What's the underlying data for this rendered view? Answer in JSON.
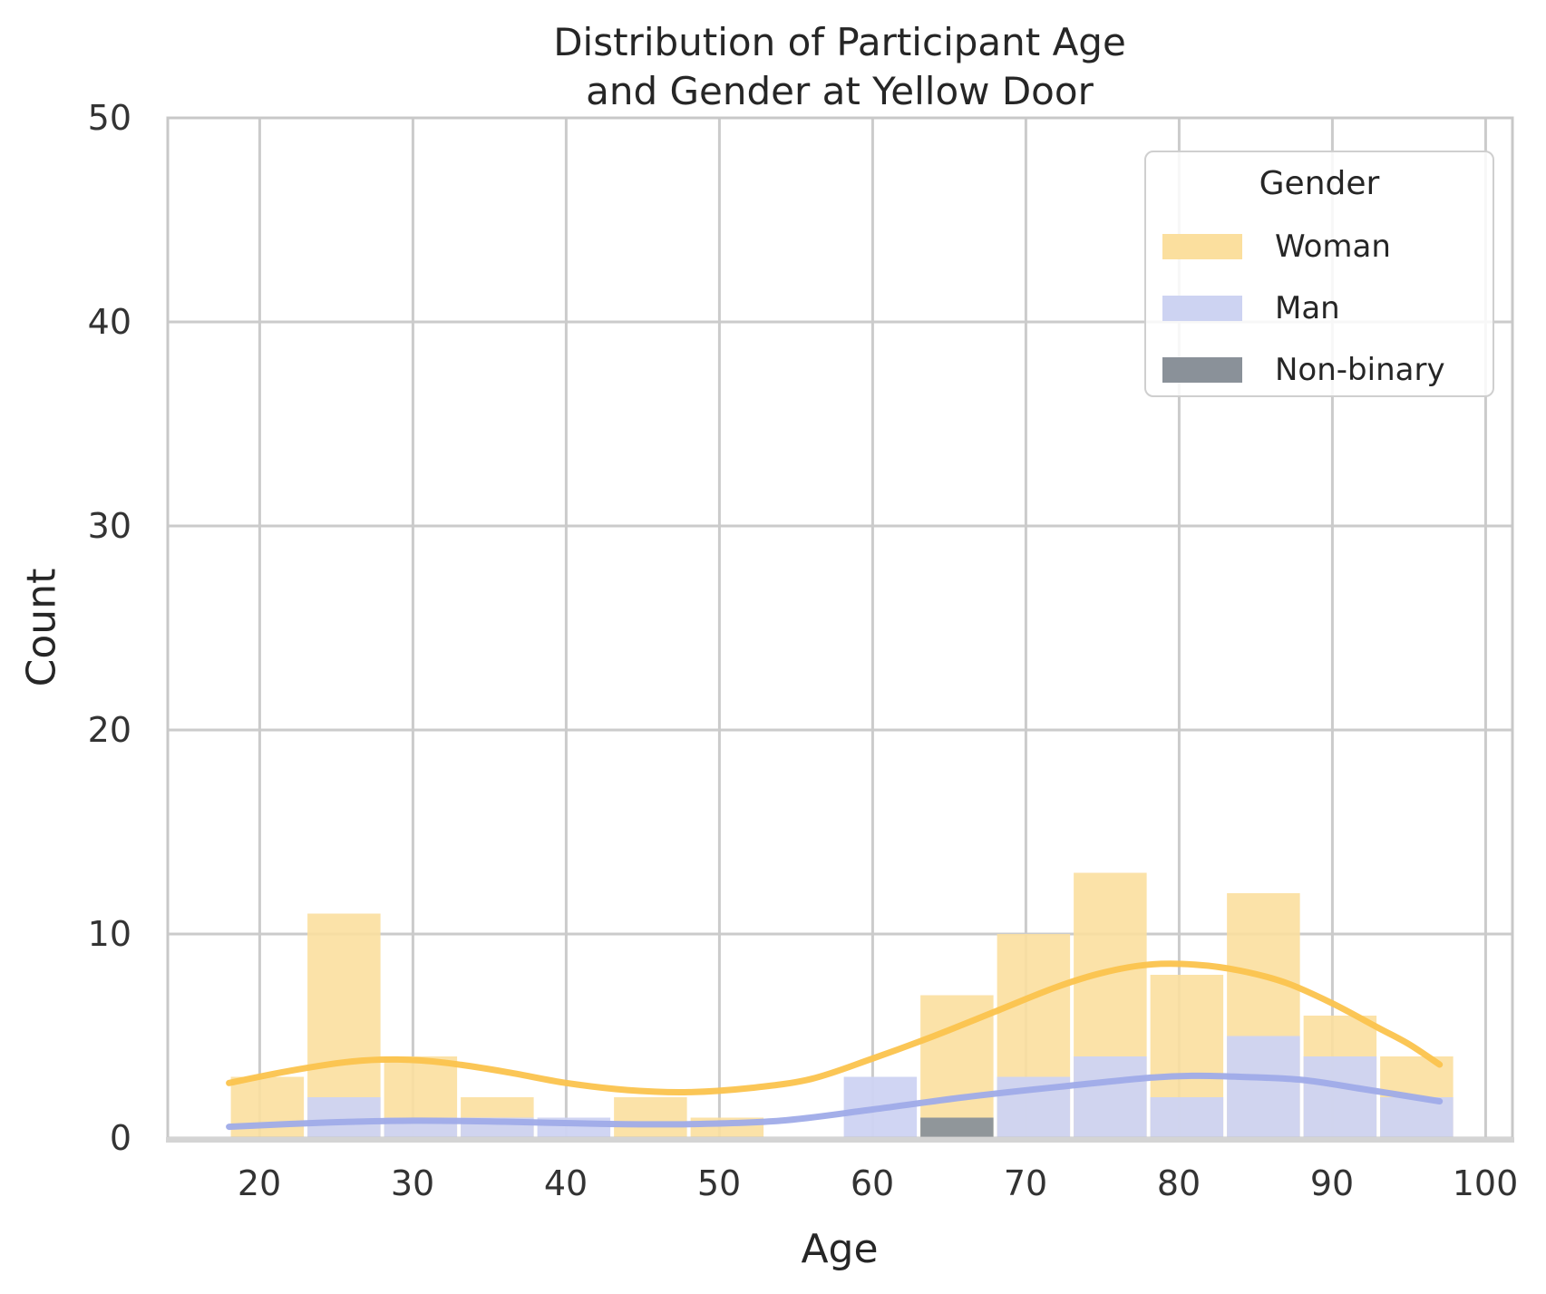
{
  "title": {
    "line1": "Distribution of Participant Age",
    "line2": "and Gender at Yellow Door"
  },
  "axes": {
    "xlabel": "Age",
    "ylabel": "Count",
    "x_ticks": [
      "20",
      "30",
      "40",
      "50",
      "60",
      "70",
      "80",
      "90",
      "100"
    ],
    "y_ticks": [
      "0",
      "10",
      "20",
      "30",
      "40",
      "50"
    ]
  },
  "legend": {
    "title": "Gender",
    "entries": [
      {
        "label": "Woman"
      },
      {
        "label": "Man"
      },
      {
        "label": "Non-binary"
      }
    ]
  },
  "colors": {
    "woman_bar": "#FBDF9E",
    "man_bar": "#CDD3F2",
    "nonbinary_bar": "#8A9199",
    "woman_kde": "#FBC34D",
    "man_kde": "#9FABE8",
    "grid": "#CBCBCB",
    "frame": "#C8C8C8",
    "baseline": "#D4D4D4",
    "text": "#2B2B2B"
  },
  "chart_data": {
    "type": "histogram+kde",
    "title": "Distribution of Participant Age and Gender at Yellow Door",
    "xlabel": "Age",
    "ylabel": "Count",
    "xlim": [
      14,
      101.75
    ],
    "ylim": [
      0,
      50
    ],
    "grid": true,
    "legend_position": "upper right",
    "bin_edges": [
      18,
      23,
      28,
      33,
      38,
      43,
      48,
      53,
      58,
      63,
      68,
      73,
      78,
      83,
      88,
      93,
      98
    ],
    "series": [
      {
        "name": "Woman",
        "bar_color": "#FBDF9E",
        "bar_opacity": 0.9,
        "kde_color": "#FBC34D",
        "values": [
          3,
          11,
          4,
          2,
          0,
          2,
          1,
          0,
          0,
          7,
          10,
          13,
          8,
          12,
          6,
          4
        ],
        "kde": [
          [
            18,
            2.7
          ],
          [
            22,
            3.3
          ],
          [
            26,
            3.75
          ],
          [
            29,
            3.85
          ],
          [
            32,
            3.7
          ],
          [
            36,
            3.25
          ],
          [
            40,
            2.7
          ],
          [
            44,
            2.35
          ],
          [
            48,
            2.25
          ],
          [
            52,
            2.45
          ],
          [
            56,
            2.9
          ],
          [
            60,
            3.9
          ],
          [
            64,
            5.0
          ],
          [
            68,
            6.2
          ],
          [
            72,
            7.4
          ],
          [
            75,
            8.1
          ],
          [
            78,
            8.5
          ],
          [
            81,
            8.5
          ],
          [
            84,
            8.2
          ],
          [
            87,
            7.6
          ],
          [
            90,
            6.6
          ],
          [
            93,
            5.4
          ],
          [
            95,
            4.6
          ],
          [
            97,
            3.6
          ]
        ]
      },
      {
        "name": "Man",
        "bar_color": "#CDD3F2",
        "bar_opacity": 0.95,
        "kde_color": "#9FABE8",
        "values": [
          0,
          2,
          1,
          1,
          1,
          0,
          0,
          0,
          3,
          0,
          3,
          4,
          2,
          5,
          4,
          2
        ],
        "kde": [
          [
            18,
            0.55
          ],
          [
            24,
            0.75
          ],
          [
            30,
            0.85
          ],
          [
            36,
            0.8
          ],
          [
            42,
            0.7
          ],
          [
            48,
            0.68
          ],
          [
            54,
            0.85
          ],
          [
            60,
            1.4
          ],
          [
            66,
            2.0
          ],
          [
            72,
            2.5
          ],
          [
            78,
            2.95
          ],
          [
            81,
            3.05
          ],
          [
            84,
            3.0
          ],
          [
            88,
            2.85
          ],
          [
            92,
            2.4
          ],
          [
            97,
            1.8
          ]
        ]
      },
      {
        "name": "Non-binary",
        "bar_color": "#8A9199",
        "bar_opacity": 0.95,
        "kde_color": null,
        "values": [
          0,
          0,
          0,
          0,
          0,
          0,
          0,
          0,
          0,
          1,
          0,
          0,
          0,
          0,
          0,
          0
        ],
        "kde": []
      }
    ]
  }
}
